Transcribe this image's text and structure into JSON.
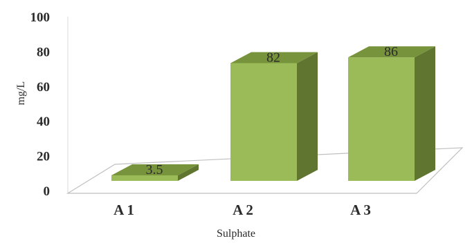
{
  "chart_data": {
    "type": "bar",
    "style": "3d-column",
    "categories": [
      "A 1",
      "A 2",
      "A 3"
    ],
    "values": [
      3.5,
      82,
      86
    ],
    "data_labels": [
      "3.5",
      "82",
      "86"
    ],
    "title": "",
    "xlabel": "Sulphate",
    "ylabel": "mg/L",
    "ylim": [
      0,
      100
    ],
    "yticks": [
      "0",
      "20",
      "40",
      "60",
      "80",
      "100"
    ],
    "grid": false,
    "legend": "none",
    "colors": {
      "bar_front": "#9bbb59",
      "bar_top": "#77933c",
      "bar_side": "#5f7530",
      "floor_stroke": "#bfbfbf",
      "wall_stroke": "#d9d9d9"
    }
  }
}
